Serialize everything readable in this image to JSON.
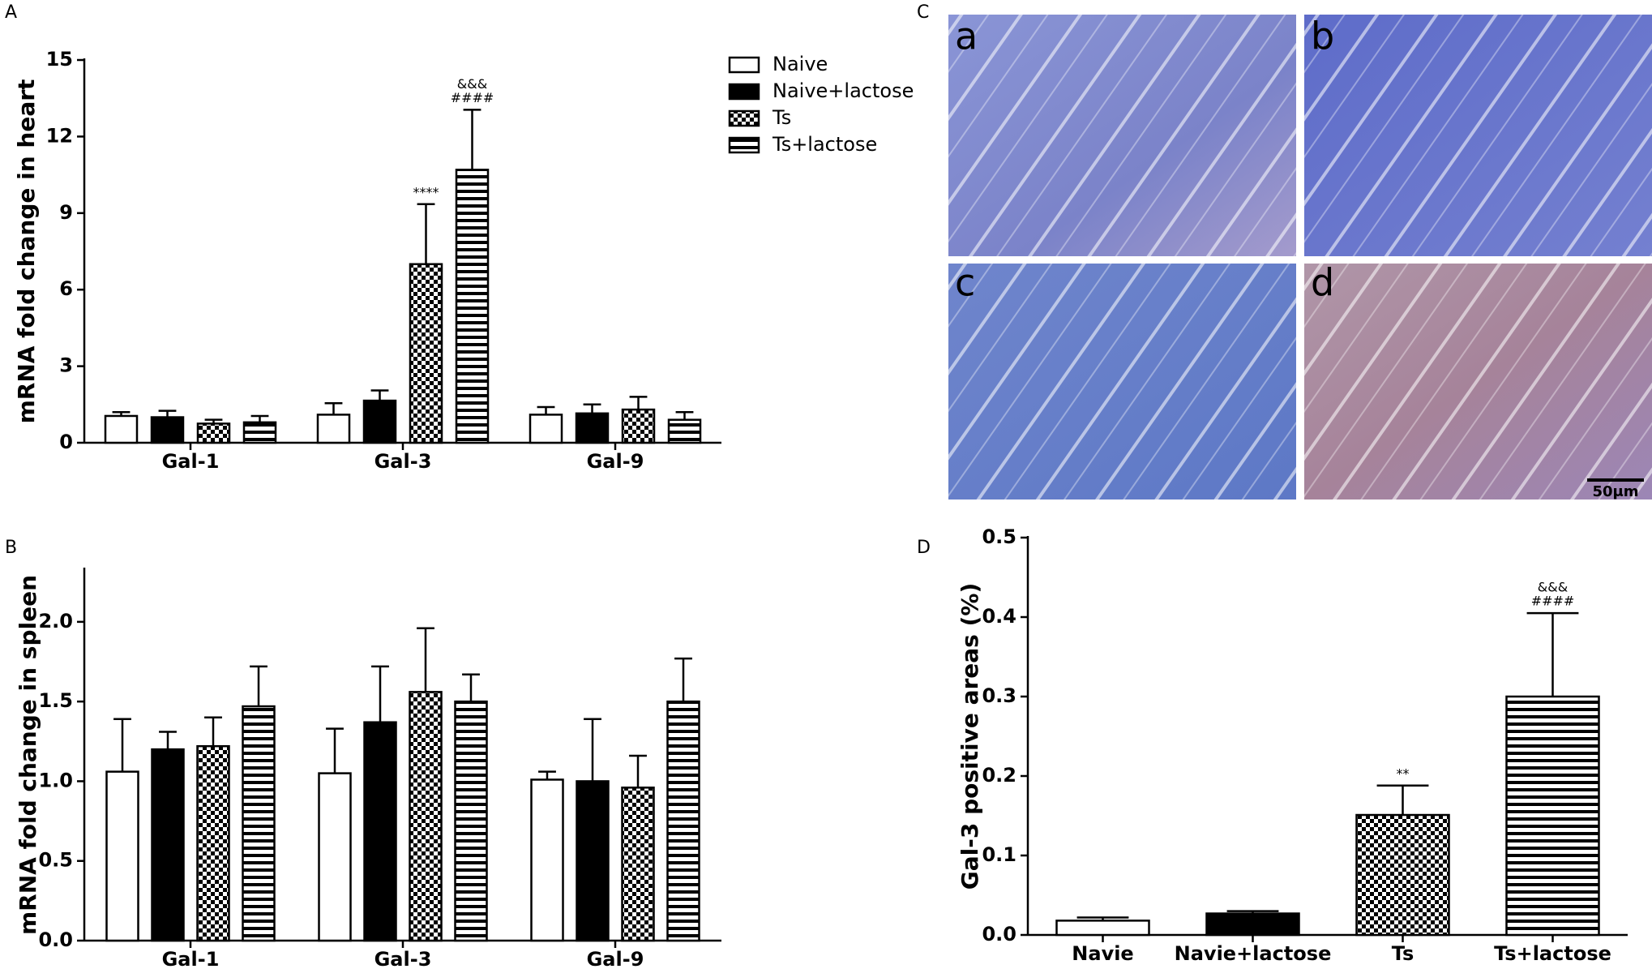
{
  "chart_data": [
    {
      "type": "bar",
      "panel_label": "A",
      "ylabel": "mRNA fold change in heart",
      "categories": [
        "Gal-1",
        "Gal-3",
        "Gal-9"
      ],
      "series": [
        {
          "name": "Naive",
          "pattern": "white",
          "values": [
            1.05,
            1.1,
            1.1
          ],
          "errors": [
            0.15,
            0.45,
            0.3
          ]
        },
        {
          "name": "Naive+lactose",
          "pattern": "black",
          "values": [
            1.0,
            1.65,
            1.15
          ],
          "errors": [
            0.25,
            0.4,
            0.35
          ]
        },
        {
          "name": "Ts",
          "pattern": "checker",
          "values": [
            0.75,
            7.0,
            1.3
          ],
          "errors": [
            0.15,
            2.35,
            0.5
          ],
          "labels": [
            null,
            [
              "****"
            ],
            null
          ]
        },
        {
          "name": "Ts+lactose",
          "pattern": "hstripe",
          "values": [
            0.8,
            10.7,
            0.9
          ],
          "errors": [
            0.25,
            2.35,
            0.3
          ],
          "labels": [
            null,
            [
              "&&&",
              "####"
            ],
            null
          ]
        }
      ],
      "ylim": [
        0,
        15
      ],
      "yticks": [
        0,
        3,
        6,
        9,
        12,
        15
      ]
    },
    {
      "type": "bar",
      "panel_label": "B",
      "ylabel": "mRNA fold change in spleen",
      "categories": [
        "Gal-1",
        "Gal-3",
        "Gal-9"
      ],
      "series": [
        {
          "pattern": "white",
          "values": [
            1.06,
            1.05,
            1.01
          ],
          "errors": [
            0.33,
            0.28,
            0.05
          ]
        },
        {
          "pattern": "black",
          "values": [
            1.2,
            1.37,
            1.0
          ],
          "errors": [
            0.11,
            0.35,
            0.39
          ]
        },
        {
          "pattern": "checker",
          "values": [
            1.22,
            1.56,
            0.96
          ],
          "errors": [
            0.18,
            0.4,
            0.2
          ]
        },
        {
          "pattern": "hstripe",
          "values": [
            1.47,
            1.5,
            1.5
          ],
          "errors": [
            0.25,
            0.17,
            0.27
          ]
        }
      ],
      "ylim": [
        0,
        2.33
      ],
      "yticks": [
        {
          "value": 0,
          "label": "0.0"
        },
        0.5,
        {
          "value": 1,
          "label": "1.0"
        },
        1.5,
        {
          "value": 2,
          "label": "2.0"
        }
      ]
    },
    {
      "type": "bar",
      "panel_label": "D",
      "ylabel": "Gal-3 positive areas (%)",
      "categories": [
        "Navie",
        "Navie+lactose",
        "Ts",
        "Ts+lactose"
      ],
      "patterns": [
        "white",
        "black",
        "checker",
        "hstripe"
      ],
      "values": [
        0.018,
        0.027,
        0.151,
        0.3
      ],
      "errors": [
        0.004,
        0.003,
        0.037,
        0.105
      ],
      "labels": [
        null,
        null,
        [
          "**"
        ],
        [
          "&&&",
          "####"
        ]
      ],
      "ylim": [
        0,
        0.5
      ],
      "yticks": [
        {
          "value": 0,
          "label": "0.0"
        },
        0.1,
        0.2,
        0.3,
        0.4,
        0.5
      ]
    }
  ],
  "panel_c": {
    "panel_label": "C",
    "images": [
      {
        "label": "a"
      },
      {
        "label": "b"
      },
      {
        "label": "c"
      },
      {
        "label": "d"
      }
    ],
    "scale_bar": "50μm"
  }
}
